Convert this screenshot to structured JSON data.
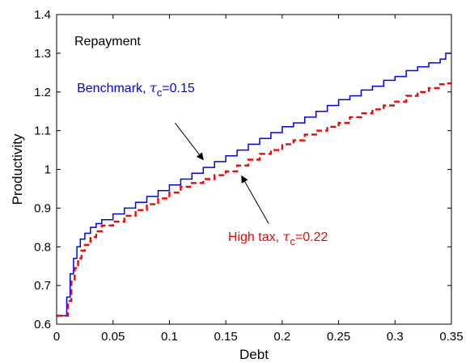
{
  "chart_data": {
    "type": "line",
    "title": "",
    "xlabel": "Debt",
    "ylabel": "Productivity",
    "xlim": [
      0,
      0.35
    ],
    "ylim": [
      0.6,
      1.4
    ],
    "xticks": [
      0,
      0.05,
      0.1,
      0.15,
      0.2,
      0.25,
      0.3,
      0.35
    ],
    "xtick_labels": [
      "0",
      "0.05",
      "0.1",
      "0.15",
      "0.2",
      "0.25",
      "0.3",
      "0.35"
    ],
    "yticks": [
      0.6,
      0.7,
      0.8,
      0.9,
      1.0,
      1.1,
      1.2,
      1.3,
      1.4
    ],
    "ytick_labels": [
      "0.6",
      "0.7",
      "0.8",
      "0.9",
      "1",
      "1.1",
      "1.2",
      "1.3",
      "1.4"
    ],
    "grid": false,
    "panel_label": "Repayment",
    "series": [
      {
        "name": "Benchmark, τc=0.15",
        "color": "#0000ff",
        "style": "solid",
        "x": [
          0,
          0.007,
          0.009,
          0.012,
          0.015,
          0.018,
          0.021,
          0.025,
          0.03,
          0.035,
          0.04,
          0.05,
          0.06,
          0.07,
          0.08,
          0.09,
          0.1,
          0.11,
          0.12,
          0.13,
          0.14,
          0.15,
          0.16,
          0.17,
          0.18,
          0.19,
          0.2,
          0.21,
          0.22,
          0.23,
          0.24,
          0.25,
          0.26,
          0.27,
          0.28,
          0.29,
          0.3,
          0.31,
          0.32,
          0.33,
          0.34,
          0.345,
          0.35
        ],
        "y": [
          0.622,
          0.622,
          0.67,
          0.73,
          0.77,
          0.8,
          0.82,
          0.835,
          0.85,
          0.86,
          0.87,
          0.885,
          0.9,
          0.915,
          0.93,
          0.945,
          0.96,
          0.975,
          0.99,
          1.005,
          1.02,
          1.035,
          1.05,
          1.065,
          1.08,
          1.095,
          1.11,
          1.12,
          1.135,
          1.15,
          1.165,
          1.18,
          1.19,
          1.205,
          1.215,
          1.23,
          1.24,
          1.255,
          1.265,
          1.275,
          1.285,
          1.3,
          1.3
        ]
      },
      {
        "name": "High tax, τc=0.22",
        "color": "#ff0000",
        "style": "dashed",
        "x": [
          0,
          0.008,
          0.01,
          0.013,
          0.016,
          0.019,
          0.022,
          0.025,
          0.03,
          0.035,
          0.04,
          0.05,
          0.06,
          0.07,
          0.08,
          0.09,
          0.1,
          0.11,
          0.12,
          0.13,
          0.14,
          0.15,
          0.16,
          0.17,
          0.18,
          0.19,
          0.2,
          0.21,
          0.22,
          0.23,
          0.24,
          0.25,
          0.26,
          0.27,
          0.28,
          0.29,
          0.3,
          0.31,
          0.32,
          0.33,
          0.34,
          0.345,
          0.35
        ],
        "y": [
          0.622,
          0.622,
          0.66,
          0.71,
          0.745,
          0.77,
          0.79,
          0.805,
          0.825,
          0.84,
          0.855,
          0.865,
          0.88,
          0.895,
          0.91,
          0.925,
          0.94,
          0.955,
          0.965,
          0.975,
          0.985,
          0.995,
          1.01,
          1.025,
          1.04,
          1.05,
          1.065,
          1.075,
          1.09,
          1.1,
          1.11,
          1.12,
          1.135,
          1.145,
          1.155,
          1.165,
          1.175,
          1.19,
          1.2,
          1.21,
          1.22,
          1.222,
          1.222
        ]
      }
    ],
    "annotations": [
      {
        "series_index": 0,
        "label": "Benchmark, ",
        "sym": "τ",
        "sub": "c",
        "value": "=0.15",
        "color": "#0000ff",
        "text_at": [
          0.018,
          1.2
        ],
        "arrow_from": [
          0.105,
          1.12
        ],
        "arrow_to": [
          0.13,
          1.025
        ]
      },
      {
        "series_index": 1,
        "label": "High tax, ",
        "sym": "τ",
        "sub": "c",
        "value": "=0.22",
        "color": "#ff0000",
        "text_at": [
          0.152,
          0.815
        ],
        "arrow_from": [
          0.188,
          0.86
        ],
        "arrow_to": [
          0.164,
          0.983
        ]
      }
    ]
  }
}
